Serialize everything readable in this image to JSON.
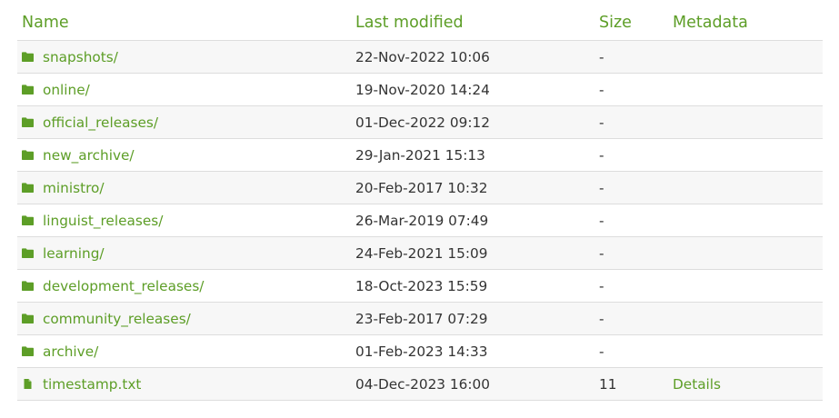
{
  "columns": {
    "name": "Name",
    "last_modified": "Last modified",
    "size": "Size",
    "metadata": "Metadata"
  },
  "rows": [
    {
      "name": "snapshots/",
      "modified": "22-Nov-2022 10:06",
      "size": "-",
      "metadata": "",
      "icon": "folder-icon"
    },
    {
      "name": "online/",
      "modified": "19-Nov-2020 14:24",
      "size": "-",
      "metadata": "",
      "icon": "folder-icon"
    },
    {
      "name": "official_releases/",
      "modified": "01-Dec-2022 09:12",
      "size": "-",
      "metadata": "",
      "icon": "folder-icon"
    },
    {
      "name": "new_archive/",
      "modified": "29-Jan-2021 15:13",
      "size": "-",
      "metadata": "",
      "icon": "folder-icon"
    },
    {
      "name": "ministro/",
      "modified": "20-Feb-2017 10:32",
      "size": "-",
      "metadata": "",
      "icon": "folder-icon"
    },
    {
      "name": "linguist_releases/",
      "modified": "26-Mar-2019 07:49",
      "size": "-",
      "metadata": "",
      "icon": "folder-icon"
    },
    {
      "name": "learning/",
      "modified": "24-Feb-2021 15:09",
      "size": "-",
      "metadata": "",
      "icon": "folder-icon"
    },
    {
      "name": "development_releases/",
      "modified": "18-Oct-2023 15:59",
      "size": "-",
      "metadata": "",
      "icon": "folder-icon"
    },
    {
      "name": "community_releases/",
      "modified": "23-Feb-2017 07:29",
      "size": "-",
      "metadata": "",
      "icon": "folder-icon"
    },
    {
      "name": "archive/",
      "modified": "01-Feb-2023 14:33",
      "size": "-",
      "metadata": "",
      "icon": "folder-icon"
    },
    {
      "name": "timestamp.txt",
      "modified": "04-Dec-2023 16:00",
      "size": "11",
      "metadata": "Details",
      "icon": "file-icon"
    }
  ],
  "colors": {
    "accent": "#5d9e27",
    "text": "#333333",
    "row_stripe": "#f7f7f7",
    "border": "#dddddd"
  }
}
